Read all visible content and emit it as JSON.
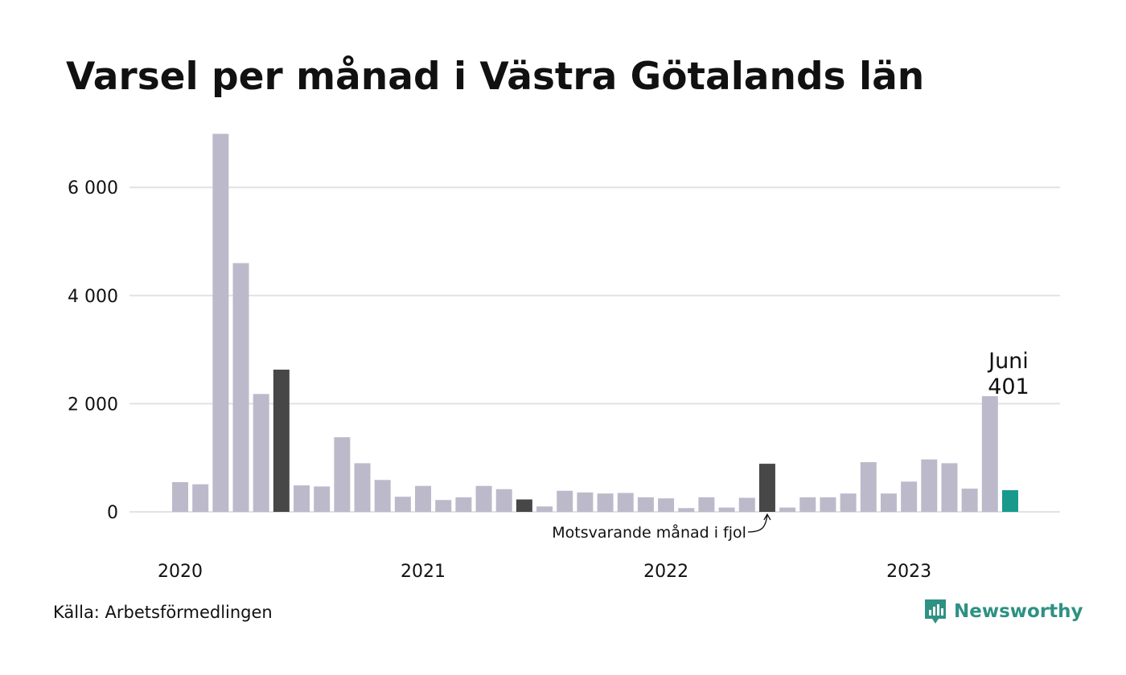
{
  "colors": {
    "default_bar": "#bcbaca",
    "same_month_last_year": "#474747",
    "current_month": "#179a8b",
    "grid": "#e2e2e2",
    "brand": "#2e9183"
  },
  "chart_data": {
    "type": "bar",
    "title": "Varsel per månad i Västra Götalands län",
    "xlabel": "",
    "ylabel": "",
    "ylim": [
      0,
      7000
    ],
    "y_ticks": [
      0,
      2000,
      4000,
      6000
    ],
    "y_tick_labels": [
      "0",
      "2 000",
      "4 000",
      "6 000"
    ],
    "x_tick_labels": [
      {
        "label": "2020",
        "index": 0
      },
      {
        "label": "2021",
        "index": 12
      },
      {
        "label": "2022",
        "index": 24
      },
      {
        "label": "2023",
        "index": 36
      }
    ],
    "grid": "horizontal",
    "categories": [
      "2020-01",
      "2020-02",
      "2020-03",
      "2020-04",
      "2020-05",
      "2020-06",
      "2020-07",
      "2020-08",
      "2020-09",
      "2020-10",
      "2020-11",
      "2020-12",
      "2021-01",
      "2021-02",
      "2021-03",
      "2021-04",
      "2021-05",
      "2021-06",
      "2021-07",
      "2021-08",
      "2021-09",
      "2021-10",
      "2021-11",
      "2021-12",
      "2022-01",
      "2022-02",
      "2022-03",
      "2022-04",
      "2022-05",
      "2022-06",
      "2022-07",
      "2022-08",
      "2022-09",
      "2022-10",
      "2022-11",
      "2022-12",
      "2023-01",
      "2023-02",
      "2023-03",
      "2023-04",
      "2023-05",
      "2023-06"
    ],
    "values": [
      550,
      510,
      6990,
      4600,
      2180,
      2630,
      490,
      470,
      1380,
      900,
      590,
      280,
      480,
      220,
      270,
      480,
      420,
      230,
      100,
      390,
      360,
      340,
      350,
      270,
      250,
      70,
      270,
      80,
      260,
      890,
      80,
      270,
      270,
      340,
      920,
      340,
      560,
      970,
      900,
      430,
      2140,
      401
    ],
    "highlights": [
      {
        "index": 5,
        "role": "same_month_last_year"
      },
      {
        "index": 17,
        "role": "same_month_last_year"
      },
      {
        "index": 29,
        "role": "same_month_last_year"
      },
      {
        "index": 41,
        "role": "current_month"
      }
    ],
    "annotations": [
      {
        "text": "Motsvarande månad i fjol",
        "index": 29
      },
      {
        "text": "Juni",
        "index": 41
      },
      {
        "text": "401",
        "index": 41
      }
    ]
  },
  "footer": {
    "source": "Källa: Arbetsförmedlingen",
    "brand": "Newsworthy",
    "brand_icon": "newsworthy-logo-icon"
  }
}
